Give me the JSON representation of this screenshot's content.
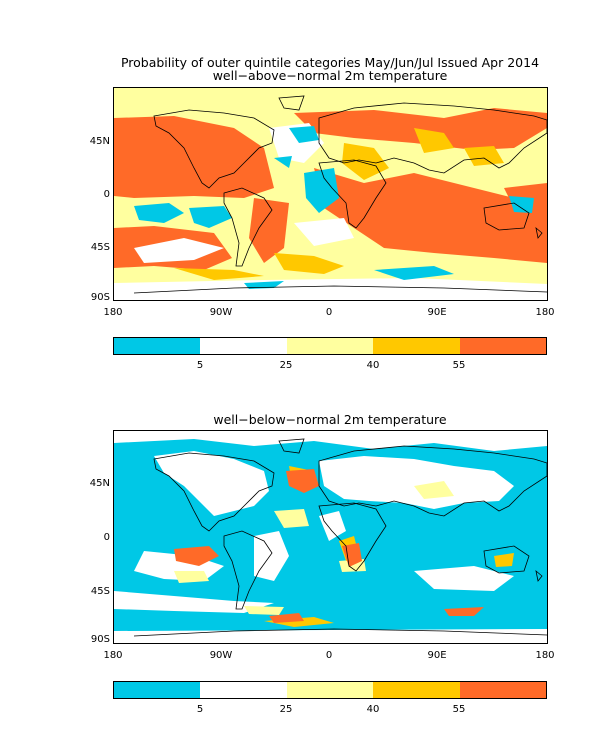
{
  "header": {
    "title_line1": "Probability of outer quintile categories May/Jun/Jul Issued Apr 2014",
    "title_line2": "well−above−normal 2m temperature"
  },
  "panel2": {
    "title": "well−below−normal 2m temperature"
  },
  "axes": {
    "lat_labels": [
      "45N",
      "0",
      "45S",
      "90S"
    ],
    "lon_labels": [
      "180",
      "90W",
      "0",
      "90E",
      "180"
    ]
  },
  "colorbar": {
    "colors": [
      "#00c8e6",
      "#ffffff",
      "#ffff9f",
      "#ffc800",
      "#ff6a28"
    ],
    "tick_labels": [
      "5",
      "25",
      "40",
      "55"
    ]
  },
  "colors": {
    "ocean_cyan": "#00c8e6",
    "pale_yellow": "#ffff9f",
    "gold": "#ffc800",
    "orange": "#ff6a28"
  }
}
